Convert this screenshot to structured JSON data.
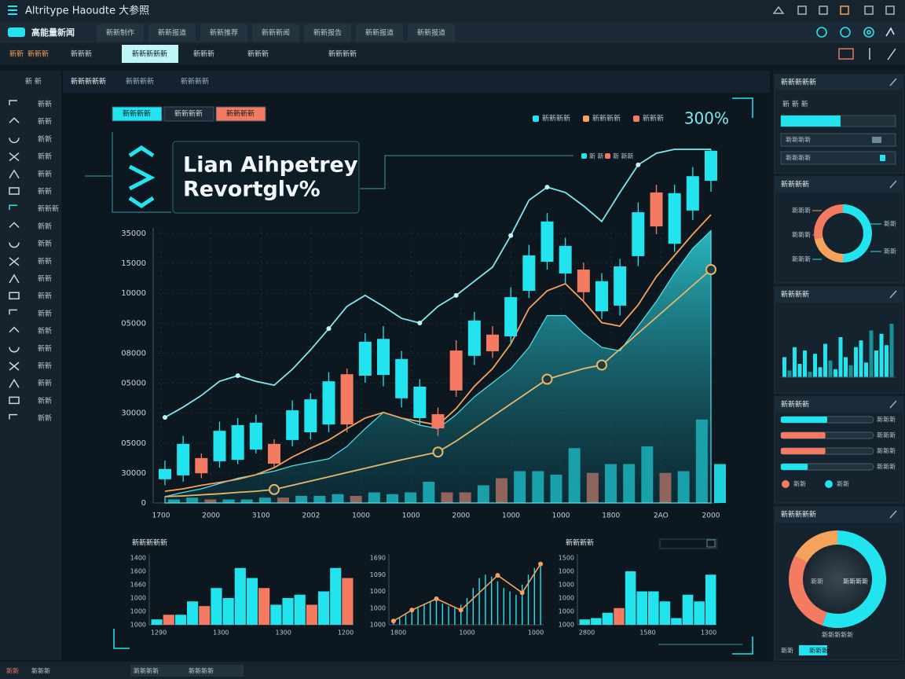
{
  "top_bar": {
    "title": "Altritype Haoudte 大参照"
  },
  "nav": {
    "brand": "高能量新闻",
    "tabs": [
      "新新制作",
      "新新报道",
      "新新推荐",
      "新新新闻",
      "新新报告",
      "新新报道",
      "新新报道"
    ]
  },
  "toolbar": {
    "items": [
      "新新",
      "新新新",
      "新新新",
      "新新新新新",
      "新新新",
      "新新新",
      "新新新新"
    ],
    "active": 3
  },
  "sidebar": {
    "header": "新 新",
    "labels": [
      "新新",
      "新新",
      "新新",
      "新新",
      "新新",
      "新新",
      "新新新",
      "新新",
      "新新",
      "新新",
      "新新",
      "新新",
      "新新",
      "新新",
      "新新",
      "新新",
      "新新",
      "新新",
      "新新"
    ]
  },
  "main": {
    "tabs": [
      "新新新新新",
      "新新新新",
      "新新新新"
    ],
    "buttons": [
      "新新新新",
      "新新新新",
      "新新新新"
    ],
    "legend": [
      {
        "name": "新新新新",
        "color": "#22e4ee"
      },
      {
        "name": "新新新新",
        "color": "#f5a25d"
      },
      {
        "name": "新新新",
        "color": "#f47a62"
      }
    ],
    "legend_value": "300%",
    "legend2": [
      {
        "name": "新 新",
        "color": "#22e4ee"
      },
      {
        "name": "新 新新",
        "color": "#f47a62"
      }
    ],
    "title_lines": [
      "Lian Aihpetrey",
      "Revortglv%"
    ],
    "chart": {
      "type": "candlestick",
      "ylim": [
        0,
        100
      ],
      "up_color": "#22e4ee",
      "down_color": "#f47a62",
      "y_labels": [
        "35000",
        "15000",
        "10000",
        "05000",
        "08000",
        "05000",
        "30000",
        "05000",
        "30000",
        "0"
      ],
      "x_labels": [
        "1700",
        "2000",
        "3100",
        "2002",
        "1000",
        "1000",
        "2000",
        "1000",
        "1000",
        "1800",
        "2AO",
        "2000"
      ],
      "candles": {
        "open": [
          6.7,
          7.8,
          12.7,
          11.8,
          12.2,
          15.1,
          16.7,
          17.8,
          20,
          22.2,
          36.4,
          36,
          36.2,
          29.6,
          24,
          25.1,
          43.1,
          41.6,
          47.6,
          47.1,
          60,
          68.2,
          64.9,
          66,
          54.2,
          55.8,
          69.8,
          87.8,
          73.3,
          82.7,
          91.1
        ],
        "close": [
          9.6,
          16.7,
          8.4,
          20.4,
          22,
          22.7,
          11.1,
          26.2,
          29.3,
          34.4,
          22.2,
          45.6,
          46.4,
          40.7,
          32.9,
          21.1,
          31.8,
          51.6,
          42.9,
          58.2,
          70,
          79.6,
          72.7,
          59.6,
          62.7,
          66.9,
          82.2,
          78.2,
          87.6,
          92.4,
          99.6
        ],
        "high": [
          12,
          19,
          14,
          23,
          24,
          25,
          18,
          29,
          31,
          37,
          38,
          48,
          50,
          43,
          35,
          27,
          46,
          54,
          50,
          61,
          73,
          82,
          75,
          68,
          65,
          69,
          85,
          90,
          90,
          95,
          100
        ],
        "low": [
          5,
          6,
          7,
          10,
          11,
          14,
          10,
          16,
          18,
          20,
          20,
          34,
          33,
          27,
          22,
          19,
          30,
          39,
          41,
          45,
          58,
          66,
          62,
          57,
          52,
          53,
          67,
          76,
          71,
          80,
          88
        ]
      },
      "volume": [
        1,
        1.5,
        1,
        1,
        1,
        1.5,
        1.5,
        2,
        2,
        2.5,
        2,
        3,
        2.5,
        3,
        6,
        3,
        3,
        5,
        7,
        9,
        9,
        8,
        15.5,
        8.5,
        11,
        11,
        16,
        8.5,
        9,
        23.6,
        11
      ],
      "series": [
        {
          "style": "area",
          "color": "#1fb8c0",
          "values": [
            1.8,
            3,
            4,
            5.5,
            7,
            8,
            9,
            10.5,
            11.5,
            12.5,
            16,
            21,
            25.6,
            24,
            22,
            21,
            25,
            30,
            34,
            38,
            44,
            53,
            53,
            48,
            44,
            43,
            50,
            57,
            65,
            72,
            77
          ]
        },
        {
          "style": "line",
          "color": "#7de9f0",
          "values": [
            24.2,
            27.1,
            30.4,
            34.4,
            36,
            34.4,
            33.3,
            37.8,
            43.3,
            49.3,
            55.6,
            58.7,
            55.6,
            52.2,
            50.9,
            55.6,
            58.7,
            62.7,
            66.7,
            75.6,
            85.6,
            89.3,
            87.8,
            84,
            79.6,
            87.8,
            95.6,
            98.9,
            100,
            100,
            100
          ]
        },
        {
          "style": "line",
          "color": "#f5a25d",
          "values": [
            3.3,
            4,
            5,
            5.8,
            6.7,
            8,
            10,
            13,
            15.5,
            17.8,
            21,
            24,
            25.6,
            24,
            23,
            22,
            26.7,
            33,
            38,
            45,
            55,
            60,
            62,
            57,
            51,
            50,
            56,
            64,
            70,
            76,
            81.5
          ]
        },
        {
          "style": "dots",
          "color": "#e8b86a",
          "values": [
            1.8,
            2,
            2.3,
            2.6,
            3,
            3.3,
            3.8,
            5,
            6.2,
            7.4,
            8.6,
            9.8,
            11,
            12.2,
            13.3,
            14.4,
            17.5,
            21,
            24.5,
            28,
            31.5,
            35,
            36.5,
            38,
            39,
            43.5,
            48,
            52.5,
            57,
            61.5,
            66
          ]
        }
      ]
    },
    "mini_charts": [
      {
        "type": "bar",
        "title": "新新新新新",
        "ylim": [
          0,
          100
        ],
        "values": [
          8,
          15,
          15,
          35,
          28,
          55,
          40,
          85,
          70,
          55,
          30,
          40,
          45,
          30,
          50,
          85,
          70
        ],
        "colors": [
          "#22e4ee",
          "#f47a62",
          "#22e4ee",
          "#22e4ee",
          "#f47a62",
          "#22e4ee",
          "#22e4ee",
          "#22e4ee",
          "#22e4ee",
          "#f47a62",
          "#22e4ee",
          "#22e4ee",
          "#22e4ee",
          "#f47a62",
          "#22e4ee",
          "#22e4ee",
          "#f47a62"
        ],
        "y_labels": [
          "1400",
          "1600",
          "1660",
          "1000",
          "1000",
          "1000"
        ],
        "x_labels": [
          "1290",
          "1300",
          "1300",
          "1200"
        ]
      },
      {
        "type": "spike",
        "ylim": [
          0,
          100
        ],
        "color": "#22e4ee",
        "values": [
          5,
          10,
          15,
          20,
          25,
          30,
          35,
          38,
          32,
          28,
          25,
          30,
          40,
          55,
          70,
          75,
          72,
          65,
          55,
          50,
          45,
          60,
          75,
          85,
          92
        ],
        "line_color": "#f5a25d",
        "line_x": [
          0,
          3,
          7,
          11,
          17,
          21,
          24
        ],
        "line_values": [
          5.6,
          22,
          39,
          22,
          74,
          48,
          91
        ],
        "y_labels": [
          "1690",
          "1090",
          "1000",
          "1000",
          "1000"
        ],
        "x_labels": [
          "1800",
          "1000",
          "1000"
        ]
      },
      {
        "type": "bar",
        "title": "新新新新",
        "ylim": [
          0,
          100
        ],
        "values": [
          8,
          10,
          18,
          25,
          80,
          50,
          50,
          35,
          10,
          45,
          35,
          75
        ],
        "colors": [
          "#22e4ee",
          "#22e4ee",
          "#22e4ee",
          "#f47a62",
          "#22e4ee",
          "#22e4ee",
          "#22e4ee",
          "#22e4ee",
          "#22e4ee",
          "#22e4ee",
          "#22e4ee",
          "#22e4ee"
        ],
        "y_labels": [
          "1500",
          "1000",
          "1000",
          "1000",
          "1000",
          "1000"
        ],
        "x_labels": [
          "2800",
          "1580",
          "1300"
        ]
      }
    ]
  },
  "right": {
    "panel1": {
      "title": "新新新新新",
      "subtitle": "新 新 新",
      "progress": 52,
      "rows": [
        "新新新新",
        "新新新新"
      ]
    },
    "panel2": {
      "title": "新新新新",
      "values": [
        50,
        22,
        28
      ],
      "colors": [
        "#22e4ee",
        "#f5a25d",
        "#f47a62"
      ],
      "left_labels": [
        "新新新",
        "新新新",
        "新新新"
      ],
      "right_labels": [
        "新新",
        "新新"
      ]
    },
    "panel3": {
      "title": "新新新新",
      "values": [
        30,
        10,
        45,
        20,
        40,
        8,
        35,
        15,
        50,
        25,
        12,
        60,
        30,
        18,
        45,
        55,
        22,
        70,
        40,
        65,
        48,
        80
      ],
      "ylim": [
        0,
        100
      ]
    },
    "panel4": {
      "title": "新新新新",
      "values": [
        50,
        48,
        48,
        29
      ],
      "colors": [
        "#22e4ee",
        "#f47a62",
        "#f47a62",
        "#22e4ee"
      ],
      "row_labels": [
        "新新新",
        "新新新",
        "新新新",
        "新新新"
      ],
      "legend": [
        "新新",
        "新新"
      ]
    },
    "panel5": {
      "title": "新新新新新",
      "values": [
        55,
        28,
        17
      ],
      "colors": [
        "#22e4ee",
        "#f47a62",
        "#f5a25d"
      ],
      "center_left": "新新",
      "center_right": "新新新新",
      "caption": "新新新新新",
      "tabs": [
        "新新",
        "新新新"
      ]
    }
  },
  "bottom_bar": {
    "items": [
      "新新",
      "新新新",
      "新新新新",
      "新新新新"
    ]
  }
}
